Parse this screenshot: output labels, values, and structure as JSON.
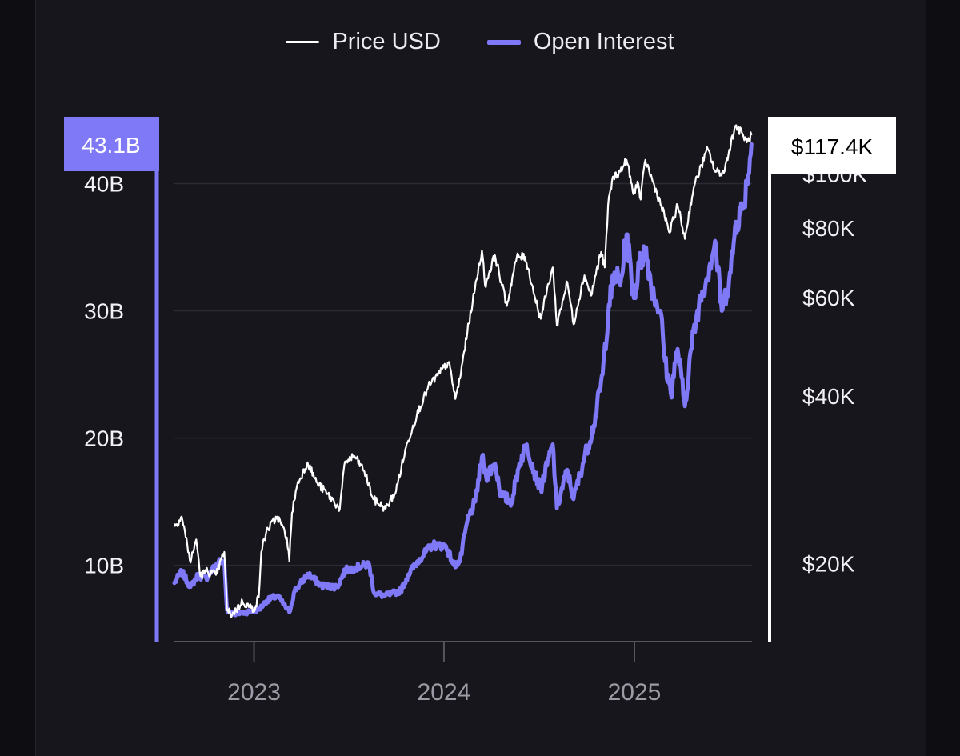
{
  "chart_data": {
    "type": "line",
    "title": "",
    "xlabel": "",
    "legend_position": "top-center",
    "x_ticks": [
      "2023",
      "2024",
      "2025"
    ],
    "x_range": [
      "2022-08-01",
      "2025-08-15"
    ],
    "y_left": {
      "label": "",
      "ticks": [
        {
          "value": 10,
          "label": "10B"
        },
        {
          "value": 20,
          "label": "20B"
        },
        {
          "value": 30,
          "label": "30B"
        },
        {
          "value": 40,
          "label": "40B"
        }
      ],
      "range": [
        4,
        45
      ],
      "unit": "B",
      "current_badge": "43.1B"
    },
    "y_right": {
      "label": "",
      "scale": "log",
      "ticks": [
        {
          "value": 20000,
          "label": "$20K"
        },
        {
          "value": 40000,
          "label": "$40K"
        },
        {
          "value": 60000,
          "label": "$60K"
        },
        {
          "value": 80000,
          "label": "$80K"
        },
        {
          "value": 100000,
          "label": "$100K"
        }
      ],
      "range": [
        14500,
        125000
      ],
      "current_badge": "$117.4K"
    },
    "grid": true,
    "series": [
      {
        "name": "Price USD",
        "axis": "right",
        "color": "#ffffff",
        "points": [
          [
            "2022-08-01",
            23300
          ],
          [
            "2022-08-15",
            24300
          ],
          [
            "2022-09-01",
            20100
          ],
          [
            "2022-09-12",
            22100
          ],
          [
            "2022-09-20",
            19000
          ],
          [
            "2022-10-01",
            19400
          ],
          [
            "2022-10-20",
            19100
          ],
          [
            "2022-11-05",
            21000
          ],
          [
            "2022-11-10",
            16500
          ],
          [
            "2022-11-20",
            16200
          ],
          [
            "2022-12-10",
            17100
          ],
          [
            "2022-12-31",
            16550
          ],
          [
            "2023-01-10",
            17400
          ],
          [
            "2023-01-15",
            21000
          ],
          [
            "2023-01-25",
            22900
          ],
          [
            "2023-02-15",
            24300
          ],
          [
            "2023-03-05",
            22300
          ],
          [
            "2023-03-10",
            20200
          ],
          [
            "2023-03-15",
            24700
          ],
          [
            "2023-03-25",
            27700
          ],
          [
            "2023-04-14",
            30400
          ],
          [
            "2023-05-01",
            28000
          ],
          [
            "2023-05-20",
            26800
          ],
          [
            "2023-06-15",
            25100
          ],
          [
            "2023-06-25",
            30500
          ],
          [
            "2023-07-13",
            31200
          ],
          [
            "2023-08-01",
            29300
          ],
          [
            "2023-08-18",
            26100
          ],
          [
            "2023-09-11",
            25100
          ],
          [
            "2023-10-01",
            27000
          ],
          [
            "2023-10-23",
            33000
          ],
          [
            "2023-11-10",
            37000
          ],
          [
            "2023-12-05",
            42000
          ],
          [
            "2023-12-20",
            43500
          ],
          [
            "2024-01-10",
            46000
          ],
          [
            "2024-01-23",
            39500
          ],
          [
            "2024-02-01",
            43000
          ],
          [
            "2024-02-15",
            52000
          ],
          [
            "2024-02-28",
            61000
          ],
          [
            "2024-03-14",
            73000
          ],
          [
            "2024-03-20",
            63000
          ],
          [
            "2024-04-08",
            71500
          ],
          [
            "2024-04-20",
            64000
          ],
          [
            "2024-05-01",
            58000
          ],
          [
            "2024-05-20",
            71000
          ],
          [
            "2024-06-05",
            71000
          ],
          [
            "2024-06-24",
            60000
          ],
          [
            "2024-07-05",
            55000
          ],
          [
            "2024-07-28",
            68000
          ],
          [
            "2024-08-05",
            53500
          ],
          [
            "2024-08-25",
            64000
          ],
          [
            "2024-09-06",
            53800
          ],
          [
            "2024-09-27",
            65800
          ],
          [
            "2024-10-10",
            60500
          ],
          [
            "2024-10-29",
            72500
          ],
          [
            "2024-11-05",
            68000
          ],
          [
            "2024-11-13",
            91000
          ],
          [
            "2024-11-22",
            99000
          ],
          [
            "2024-12-05",
            101000
          ],
          [
            "2024-12-17",
            106000
          ],
          [
            "2024-12-30",
            92000
          ],
          [
            "2025-01-07",
            97000
          ],
          [
            "2025-01-13",
            90000
          ],
          [
            "2025-01-22",
            106000
          ],
          [
            "2025-02-05",
            97000
          ],
          [
            "2025-02-28",
            84000
          ],
          [
            "2025-03-10",
            78500
          ],
          [
            "2025-03-25",
            88000
          ],
          [
            "2025-04-08",
            76500
          ],
          [
            "2025-04-25",
            94500
          ],
          [
            "2025-05-22",
            111000
          ],
          [
            "2025-06-05",
            101000
          ],
          [
            "2025-06-22",
            100500
          ],
          [
            "2025-07-14",
            122000
          ],
          [
            "2025-07-28",
            118000
          ],
          [
            "2025-08-05",
            114000
          ],
          [
            "2025-08-14",
            117400
          ]
        ]
      },
      {
        "name": "Open Interest",
        "axis": "left",
        "color": "#7f78f7",
        "points": [
          [
            "2022-08-01",
            8.6
          ],
          [
            "2022-08-15",
            9.5
          ],
          [
            "2022-09-01",
            8.3
          ],
          [
            "2022-09-15",
            9.2
          ],
          [
            "2022-10-01",
            9.0
          ],
          [
            "2022-10-25",
            10.3
          ],
          [
            "2022-11-05",
            10.2
          ],
          [
            "2022-11-10",
            6.5
          ],
          [
            "2022-11-25",
            6.2
          ],
          [
            "2022-12-15",
            6.3
          ],
          [
            "2023-01-10",
            6.5
          ],
          [
            "2023-01-25",
            7.2
          ],
          [
            "2023-02-15",
            7.6
          ],
          [
            "2023-03-10",
            6.3
          ],
          [
            "2023-03-20",
            8.0
          ],
          [
            "2023-04-15",
            9.3
          ],
          [
            "2023-05-10",
            8.4
          ],
          [
            "2023-06-10",
            8.3
          ],
          [
            "2023-06-25",
            9.6
          ],
          [
            "2023-07-15",
            9.8
          ],
          [
            "2023-08-10",
            10.1
          ],
          [
            "2023-08-20",
            7.8
          ],
          [
            "2023-09-10",
            7.6
          ],
          [
            "2023-10-10",
            8.0
          ],
          [
            "2023-10-25",
            9.3
          ],
          [
            "2023-11-15",
            10.5
          ],
          [
            "2023-12-10",
            11.6
          ],
          [
            "2024-01-05",
            11.5
          ],
          [
            "2024-01-20",
            10.0
          ],
          [
            "2024-02-01",
            10.3
          ],
          [
            "2024-02-15",
            13.5
          ],
          [
            "2024-03-01",
            15.0
          ],
          [
            "2024-03-14",
            18.5
          ],
          [
            "2024-03-22",
            17.0
          ],
          [
            "2024-04-08",
            18.0
          ],
          [
            "2024-04-20",
            15.5
          ],
          [
            "2024-05-10",
            15.0
          ],
          [
            "2024-05-25",
            18.0
          ],
          [
            "2024-06-08",
            19.5
          ],
          [
            "2024-06-25",
            17.0
          ],
          [
            "2024-07-05",
            16.0
          ],
          [
            "2024-07-28",
            19.5
          ],
          [
            "2024-08-05",
            14.5
          ],
          [
            "2024-08-25",
            17.5
          ],
          [
            "2024-09-06",
            15.2
          ],
          [
            "2024-09-27",
            18.5
          ],
          [
            "2024-10-15",
            21.0
          ],
          [
            "2024-11-01",
            25.0
          ],
          [
            "2024-11-13",
            30.5
          ],
          [
            "2024-11-25",
            33.0
          ],
          [
            "2024-12-05",
            32.0
          ],
          [
            "2024-12-17",
            36.0
          ],
          [
            "2024-12-31",
            31.0
          ],
          [
            "2025-01-10",
            33.5
          ],
          [
            "2025-01-22",
            35.0
          ],
          [
            "2025-02-05",
            31.5
          ],
          [
            "2025-02-20",
            30.0
          ],
          [
            "2025-03-01",
            26.0
          ],
          [
            "2025-03-12",
            23.5
          ],
          [
            "2025-03-25",
            27.0
          ],
          [
            "2025-04-08",
            22.5
          ],
          [
            "2025-04-20",
            27.0
          ],
          [
            "2025-05-05",
            30.5
          ],
          [
            "2025-05-25",
            33.5
          ],
          [
            "2025-06-05",
            35.5
          ],
          [
            "2025-06-18",
            30.0
          ],
          [
            "2025-07-05",
            33.0
          ],
          [
            "2025-07-15",
            37.0
          ],
          [
            "2025-07-28",
            38.0
          ],
          [
            "2025-08-05",
            40.0
          ],
          [
            "2025-08-14",
            43.1
          ]
        ]
      }
    ]
  }
}
